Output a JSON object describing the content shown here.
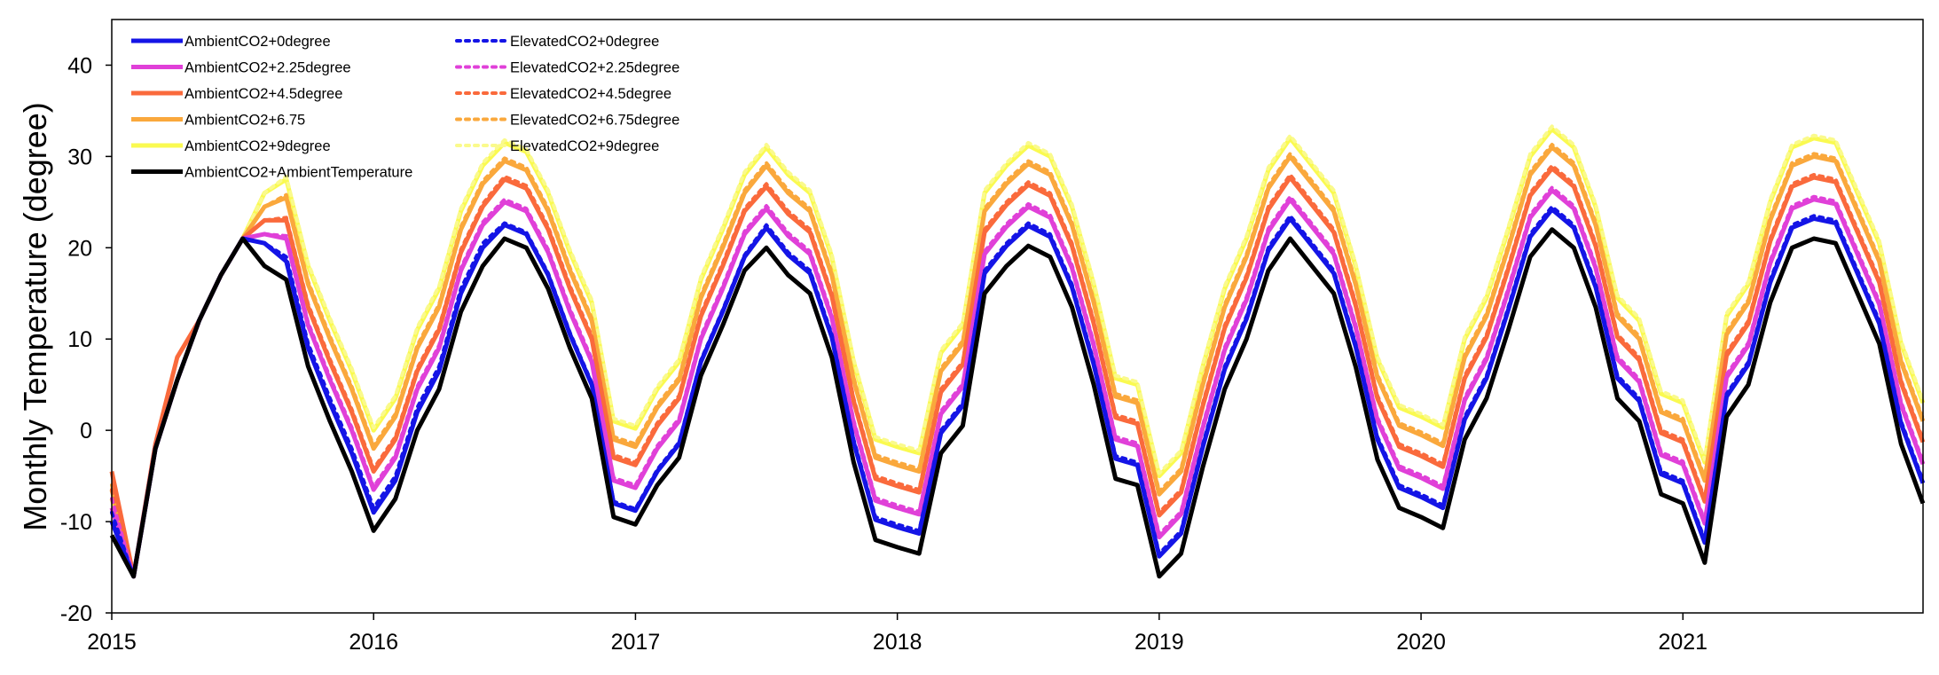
{
  "chart_data": {
    "type": "line",
    "title": "",
    "xlabel": "",
    "ylabel": "Monthly Temperature (degree)",
    "xlim": [
      2015,
      2021.917
    ],
    "ylim": [
      -20,
      45
    ],
    "x_ticks": [
      2015,
      2016,
      2017,
      2018,
      2019,
      2020,
      2021
    ],
    "x_tick_labels": [
      "2015",
      "2016",
      "2017",
      "2018",
      "2019",
      "2020",
      "2021"
    ],
    "y_ticks": [
      -20,
      -10,
      0,
      10,
      20,
      30,
      40
    ],
    "y_tick_labels": [
      "-20",
      "-10",
      "0",
      "10",
      "20",
      "30",
      "40"
    ],
    "grid": false,
    "legend_position": "top-left",
    "x_start": "2015-01",
    "x_step": "monthly",
    "baseline": [
      -11.5,
      -16,
      -2,
      5.5,
      12,
      17,
      21,
      18,
      16.5,
      7,
      1,
      -4.5,
      -11,
      -7.5,
      0,
      4.5,
      13,
      18,
      21,
      20,
      15.5,
      9,
      3.5,
      -9.5,
      -10.3,
      -6,
      -3,
      6,
      11.5,
      17.5,
      20,
      17,
      15,
      8,
      -3.5,
      -12,
      -12.8,
      -13.5,
      -2.5,
      0.5,
      15,
      18,
      20.2,
      19,
      13.5,
      5,
      -5.3,
      -6,
      -16,
      -13.5,
      -4,
      4.5,
      10,
      17.5,
      21,
      18,
      15,
      7,
      -3.2,
      -8.5,
      -9.5,
      -10.7,
      -1,
      3.5,
      11,
      19,
      22,
      20,
      13.5,
      3.5,
      1,
      -7,
      -8,
      -14.5,
      1.5,
      5,
      14,
      20,
      21,
      20.5,
      15,
      9.5,
      -1.5,
      -8
    ],
    "series": [
      {
        "name": "AmbientCO2+0degree",
        "color": "#1414E6",
        "dash": "solid",
        "width": 5,
        "offsets": [
          1.5,
          0,
          0,
          0,
          0,
          0,
          0,
          2.5,
          2.0,
          2.0,
          2.0,
          2.0,
          2.0,
          2.0,
          2.0,
          2.0,
          2.0,
          2.0,
          1.5,
          1.5,
          1.5,
          1.5,
          1.5,
          1.5,
          1.5,
          1.5,
          1.5,
          1.5,
          1.5,
          1.5,
          2.2,
          2.2,
          2.2,
          2.2,
          2.2,
          2.2,
          2.2,
          2.2,
          2.2,
          2.2,
          2.2,
          2.2,
          2.2,
          2.2,
          2.2,
          2.2,
          2.2,
          2.2,
          2.2,
          2.2,
          2.2,
          2.2,
          2.2,
          2.2,
          2.2,
          2.2,
          2.2,
          2.2,
          2.2,
          2.2,
          2.2,
          2.2,
          2.2,
          2.2,
          2.2,
          2.2,
          2.2,
          2.2,
          2.2,
          2.2,
          2.2,
          2.2,
          2.2,
          2.2,
          2.2,
          2.2,
          2.2,
          2.2,
          2.2,
          2.2,
          2.2,
          2.2,
          2.2,
          2.2
        ]
      },
      {
        "name": "AmbientCO2+2.25degree",
        "color": "#E040D8",
        "dash": "solid",
        "width": 5,
        "offsets": [
          3,
          0,
          0,
          0,
          0,
          0,
          0,
          3.5,
          4.5,
          4.5,
          4.5,
          4.5,
          4.5,
          4.5,
          4.5,
          4.5,
          4.5,
          4.5,
          4.0,
          4.0,
          4.0,
          4.0,
          4.0,
          4.0,
          4.0,
          4.0,
          4.0,
          4.0,
          4.0,
          4.0,
          4.3,
          4.3,
          4.3,
          4.3,
          4.3,
          4.3,
          4.3,
          4.3,
          4.3,
          4.3,
          4.3,
          4.3,
          4.3,
          4.3,
          4.3,
          4.3,
          4.3,
          4.3,
          4.3,
          4.3,
          4.3,
          4.3,
          4.3,
          4.3,
          4.3,
          4.3,
          4.3,
          4.3,
          4.3,
          4.3,
          4.3,
          4.3,
          4.3,
          4.3,
          4.3,
          4.3,
          4.3,
          4.3,
          4.3,
          4.3,
          4.3,
          4.3,
          4.3,
          4.3,
          4.3,
          4.3,
          4.3,
          4.3,
          4.3,
          4.3,
          4.3,
          4.3,
          4.3,
          4.3
        ]
      },
      {
        "name": "AmbientCO2+4.5degree",
        "color": "#FA6A3C",
        "dash": "solid",
        "width": 5,
        "offsets": [
          7,
          0,
          0.5,
          2.5,
          0,
          0,
          0,
          5,
          6.5,
          6.5,
          6.5,
          6.5,
          6.5,
          6.5,
          6.5,
          6.5,
          6.5,
          6.5,
          6.5,
          6.5,
          6.5,
          6.5,
          6.5,
          6.5,
          6.5,
          6.5,
          6.5,
          6.5,
          6.5,
          6.5,
          6.7,
          6.7,
          6.7,
          6.7,
          6.7,
          6.7,
          6.7,
          6.7,
          6.7,
          6.7,
          6.7,
          6.7,
          6.7,
          6.7,
          6.7,
          6.7,
          6.7,
          6.7,
          6.7,
          6.7,
          6.7,
          6.7,
          6.7,
          6.7,
          6.7,
          6.7,
          6.7,
          6.7,
          6.7,
          6.7,
          6.7,
          6.7,
          6.7,
          6.7,
          6.7,
          6.7,
          6.7,
          6.7,
          6.7,
          6.7,
          6.7,
          6.7,
          6.7,
          6.7,
          6.7,
          6.7,
          6.7,
          6.7,
          6.7,
          6.7,
          6.7,
          6.7,
          6.7,
          6.7
        ]
      },
      {
        "name": "AmbientCO2+6.75",
        "color": "#FAA83C",
        "dash": "solid",
        "width": 5,
        "offsets": [
          5,
          0,
          0,
          0,
          0,
          0,
          0,
          6.5,
          9,
          9,
          9,
          9,
          9,
          9,
          9,
          9,
          9,
          9,
          8.5,
          8.5,
          8.5,
          8.5,
          8.5,
          8.5,
          8.5,
          8.5,
          8.5,
          8.5,
          8.5,
          8.5,
          9,
          9,
          9,
          9,
          9,
          9,
          9,
          9,
          9,
          9,
          9,
          9,
          9,
          9,
          9,
          9,
          9,
          9,
          9,
          9,
          9,
          9,
          9,
          9,
          9,
          9,
          9,
          9,
          9,
          9,
          9,
          9,
          9,
          9,
          9,
          9,
          9,
          9,
          9,
          9,
          9,
          9,
          9,
          9,
          9,
          9,
          9,
          9,
          9,
          9,
          9,
          9,
          9,
          9
        ]
      },
      {
        "name": "AmbientCO2+9degree",
        "color": "#FAFA50",
        "dash": "solid",
        "width": 5,
        "offsets": [
          4,
          0,
          0,
          0,
          0,
          0,
          0,
          8,
          11,
          11,
          11,
          11,
          11,
          11,
          11,
          11,
          11,
          11,
          10.5,
          10.5,
          10.5,
          10.5,
          10.5,
          10.5,
          10.5,
          10.5,
          10.5,
          10.5,
          10.5,
          10.5,
          11,
          11,
          11,
          11,
          11,
          11,
          11,
          11,
          11,
          11,
          11,
          11,
          11,
          11,
          11,
          11,
          11,
          11,
          11,
          11,
          11,
          11,
          11,
          11,
          11,
          11,
          11,
          11,
          11,
          11,
          11,
          11,
          11,
          11,
          11,
          11,
          11,
          11,
          11,
          11,
          11,
          11,
          11,
          11,
          11,
          11,
          11,
          11,
          11,
          11,
          11,
          11,
          11,
          11
        ]
      },
      {
        "name": "AmbientCO2+AmbientTemperature",
        "color": "#000000",
        "dash": "solid",
        "width": 5,
        "offsets": [
          0
        ]
      },
      {
        "name": "ElevatedCO2+0degree",
        "color": "#1414E6",
        "dash": "dot",
        "width": 4,
        "offsets": [
          2.5,
          0,
          0,
          0,
          0,
          0,
          0,
          2.5,
          2.5,
          2.5,
          2.5,
          2.5,
          2.5,
          2.5,
          2.5,
          2.5,
          2.5,
          2.5,
          1.7,
          1.7,
          1.7,
          1.7,
          1.7,
          1.7,
          1.7,
          1.7,
          1.7,
          1.7,
          1.7,
          1.7,
          2.5,
          2.5,
          2.5,
          2.5,
          2.5,
          2.5,
          2.5,
          2.5,
          2.5,
          2.5,
          2.5,
          2.5,
          2.5,
          2.5,
          2.5,
          2.5,
          2.5,
          2.5,
          2.5,
          2.5,
          2.5,
          2.5,
          2.5,
          2.5,
          2.5,
          2.5,
          2.5,
          2.5,
          2.5,
          2.5,
          2.5,
          2.5,
          2.5,
          2.5,
          2.5,
          2.5,
          2.5,
          2.5,
          2.5,
          2.5,
          2.5,
          2.5,
          2.5,
          2.5,
          2.5,
          2.5,
          2.5,
          2.5,
          2.5,
          2.5,
          2.5,
          2.5,
          2.5,
          2.5
        ]
      },
      {
        "name": "ElevatedCO2+2.25degree",
        "color": "#E040D8",
        "dash": "dot",
        "width": 4,
        "offsets": [
          4,
          0,
          0,
          0,
          0,
          0,
          0,
          3.5,
          4.8,
          4.8,
          4.8,
          4.8,
          4.8,
          4.8,
          4.8,
          4.8,
          4.8,
          4.8,
          4.3,
          4.3,
          4.3,
          4.3,
          4.3,
          4.3,
          4.3,
          4.3,
          4.3,
          4.3,
          4.3,
          4.3,
          4.6,
          4.6,
          4.6,
          4.6,
          4.6,
          4.6,
          4.6,
          4.6,
          4.6,
          4.6,
          4.6,
          4.6,
          4.6,
          4.6,
          4.6,
          4.6,
          4.6,
          4.6,
          4.6,
          4.6,
          4.6,
          4.6,
          4.6,
          4.6,
          4.6,
          4.6,
          4.6,
          4.6,
          4.6,
          4.6,
          4.6,
          4.6,
          4.6,
          4.6,
          4.6,
          4.6,
          4.6,
          4.6,
          4.6,
          4.6,
          4.6,
          4.6,
          4.6,
          4.6,
          4.6,
          4.6,
          4.6,
          4.6,
          4.6,
          4.6,
          4.6,
          4.6,
          4.6,
          4.6
        ]
      },
      {
        "name": "ElevatedCO2+4.5degree",
        "color": "#FA6A3C",
        "dash": "dot",
        "width": 4,
        "offsets": [
          5,
          0,
          0.5,
          2.5,
          0,
          0,
          0,
          5,
          6.8,
          6.8,
          6.8,
          6.8,
          6.8,
          6.8,
          6.8,
          6.8,
          6.8,
          6.8,
          6.8,
          6.8,
          6.8,
          6.8,
          6.8,
          6.8,
          6.8,
          6.8,
          6.8,
          6.8,
          6.8,
          6.8,
          7,
          7,
          7,
          7,
          7,
          7,
          7,
          7,
          7,
          7,
          7,
          7,
          7,
          7,
          7,
          7,
          7,
          7,
          7,
          7,
          7,
          7,
          7,
          7,
          7,
          7,
          7,
          7,
          7,
          7,
          7,
          7,
          7,
          7,
          7,
          7,
          7,
          7,
          7,
          7,
          7,
          7,
          7,
          7,
          7,
          7,
          7,
          7,
          7,
          7,
          7,
          7,
          7,
          7
        ]
      },
      {
        "name": "ElevatedCO2+6.75degree",
        "color": "#FAA83C",
        "dash": "dot",
        "width": 4,
        "offsets": [
          5.5,
          0,
          0,
          0,
          0,
          0,
          0,
          6.5,
          9.3,
          9.3,
          9.3,
          9.3,
          9.3,
          9.3,
          9.3,
          9.3,
          9.3,
          9.3,
          8.8,
          8.8,
          8.8,
          8.8,
          8.8,
          8.8,
          8.8,
          8.8,
          8.8,
          8.8,
          8.8,
          8.8,
          9.3,
          9.3,
          9.3,
          9.3,
          9.3,
          9.3,
          9.3,
          9.3,
          9.3,
          9.3,
          9.3,
          9.3,
          9.3,
          9.3,
          9.3,
          9.3,
          9.3,
          9.3,
          9.3,
          9.3,
          9.3,
          9.3,
          9.3,
          9.3,
          9.3,
          9.3,
          9.3,
          9.3,
          9.3,
          9.3,
          9.3,
          9.3,
          9.3,
          9.3,
          9.3,
          9.3,
          9.3,
          9.3,
          9.3,
          9.3,
          9.3,
          9.3,
          9.3,
          9.3,
          9.3,
          9.3,
          9.3,
          9.3,
          9.3,
          9.3,
          9.3,
          9.3,
          9.3,
          9.3
        ]
      },
      {
        "name": "ElevatedCO2+9degree",
        "color": "#FAFA8C",
        "dash": "dot",
        "width": 4,
        "offsets": [
          5,
          0,
          0,
          0,
          0,
          0,
          0,
          8,
          11.3,
          11.3,
          11.3,
          11.3,
          11.3,
          11.3,
          11.3,
          11.3,
          11.3,
          11.3,
          10.8,
          10.8,
          10.8,
          10.8,
          10.8,
          10.8,
          10.8,
          10.8,
          10.8,
          10.8,
          10.8,
          10.8,
          11.3,
          11.3,
          11.3,
          11.3,
          11.3,
          11.3,
          11.3,
          11.3,
          11.3,
          11.3,
          11.3,
          11.3,
          11.3,
          11.3,
          11.3,
          11.3,
          11.3,
          11.3,
          11.3,
          11.3,
          11.3,
          11.3,
          11.3,
          11.3,
          11.3,
          11.3,
          11.3,
          11.3,
          11.3,
          11.3,
          11.3,
          11.3,
          11.3,
          11.3,
          11.3,
          11.3,
          11.3,
          11.3,
          11.3,
          11.3,
          11.3,
          11.3,
          11.3,
          11.3,
          11.3,
          11.3,
          11.3,
          11.3,
          11.3,
          11.3,
          11.3,
          11.3,
          11.3,
          11.3
        ]
      }
    ],
    "legend_columns": [
      [
        "AmbientCO2+0degree",
        "AmbientCO2+2.25degree",
        "AmbientCO2+4.5degree",
        "AmbientCO2+6.75",
        "AmbientCO2+9degree",
        "AmbientCO2+AmbientTemperature"
      ],
      [
        "ElevatedCO2+0degree",
        "ElevatedCO2+2.25degree",
        "ElevatedCO2+4.5degree",
        "ElevatedCO2+6.75degree",
        "ElevatedCO2+9degree"
      ]
    ]
  }
}
